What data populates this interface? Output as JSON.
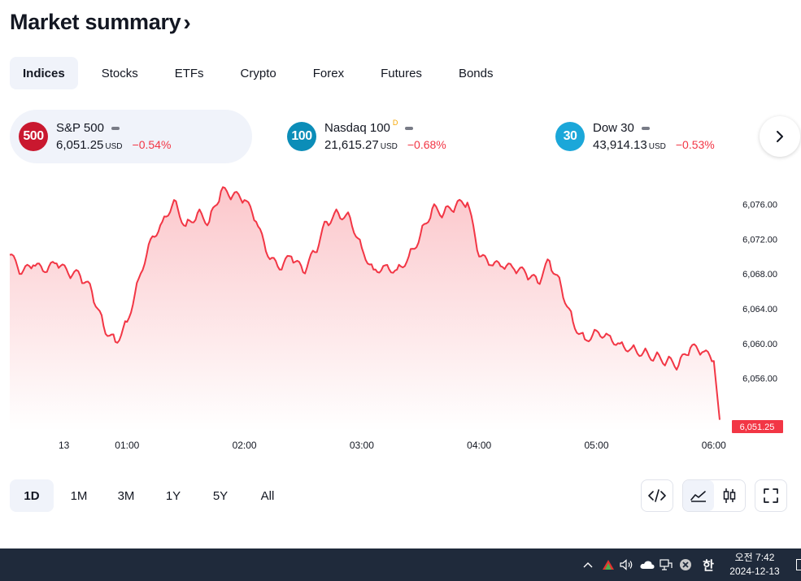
{
  "header": {
    "title": "Market summary",
    "chevron": "›"
  },
  "tabs": [
    {
      "label": "Indices",
      "active": true
    },
    {
      "label": "Stocks"
    },
    {
      "label": "ETFs"
    },
    {
      "label": "Crypto"
    },
    {
      "label": "Forex"
    },
    {
      "label": "Futures"
    },
    {
      "label": "Bonds"
    }
  ],
  "symbols": [
    {
      "logo": "500",
      "logo_color": "#c9182f",
      "name": "S&P 500",
      "flag": "",
      "price": "6,051.25",
      "currency": "USD",
      "change": "−0.54%"
    },
    {
      "logo": "100",
      "logo_color": "#0b8db8",
      "name": "Nasdaq 100",
      "flag": "D",
      "price": "21,615.27",
      "currency": "USD",
      "change": "−0.68%"
    },
    {
      "logo": "30",
      "logo_color": "#1ba7d9",
      "name": "Dow 30",
      "flag": "",
      "price": "43,914.13",
      "currency": "USD",
      "change": "−0.53%"
    }
  ],
  "next_icon": "chevron-right-icon",
  "chart_data": {
    "type": "area",
    "line_color": "#f23645",
    "x_ticks": [
      "13",
      "01:00",
      "02:00",
      "03:00",
      "04:00",
      "05:00",
      "06:00"
    ],
    "y_ticks": [
      "6,076.00",
      "6,072.00",
      "6,068.00",
      "6,064.00",
      "6,060.00",
      "6,056.00"
    ],
    "ylim": [
      6050,
      6078
    ],
    "last_price_label": "6,051.25",
    "x": [
      0.0,
      0.1,
      0.2,
      0.3,
      0.4,
      0.5,
      0.6,
      0.7,
      0.8,
      0.9,
      1.0,
      1.1,
      1.2,
      1.3,
      1.4,
      1.5,
      1.6,
      1.7,
      1.8,
      1.9,
      2.0,
      2.1,
      2.2,
      2.3,
      2.4,
      2.5,
      2.6,
      2.7,
      2.8,
      2.9,
      3.0,
      3.1,
      3.2,
      3.3,
      3.4,
      3.5,
      3.6,
      3.7,
      3.8,
      3.9,
      4.0,
      4.1,
      4.2,
      4.3,
      4.4,
      4.5,
      4.6,
      4.7,
      4.8,
      4.9,
      5.0,
      5.1,
      5.2,
      5.3,
      5.4,
      5.5,
      5.6,
      5.7,
      5.8,
      5.9,
      6.0,
      6.05
    ],
    "y": [
      6070.2,
      6068.0,
      6069.0,
      6068.2,
      6069.2,
      6068.0,
      6067.8,
      6066.0,
      6062.0,
      6060.2,
      6062.5,
      6067.5,
      6072.0,
      6074.0,
      6076.5,
      6073.5,
      6075.0,
      6074.0,
      6077.5,
      6077.0,
      6076.5,
      6074.0,
      6070.0,
      6068.5,
      6070.0,
      6068.2,
      6070.5,
      6074.0,
      6075.0,
      6074.5,
      6071.0,
      6068.5,
      6069.0,
      6068.5,
      6070.0,
      6072.5,
      6075.5,
      6075.0,
      6075.8,
      6076.2,
      6070.0,
      6069.0,
      6068.8,
      6068.5,
      6068.0,
      6067.0,
      6069.5,
      6066.5,
      6062.5,
      6060.5,
      6061.5,
      6061.0,
      6060.0,
      6059.5,
      6059.0,
      6058.5,
      6058.0,
      6057.5,
      6059.5,
      6059.0,
      6058.0,
      6051.25
    ]
  },
  "ranges": [
    {
      "label": "1D",
      "active": true
    },
    {
      "label": "1M"
    },
    {
      "label": "3M"
    },
    {
      "label": "1Y"
    },
    {
      "label": "5Y"
    },
    {
      "label": "All"
    }
  ],
  "tools": {
    "embed_icon": "code-icon",
    "area_icon": "area-chart-icon",
    "candle_icon": "candlestick-icon",
    "fullscreen_icon": "fullscreen-icon"
  },
  "taskbar": {
    "ime": "한",
    "time": "오전 7:42",
    "date": "2024-12-13"
  }
}
